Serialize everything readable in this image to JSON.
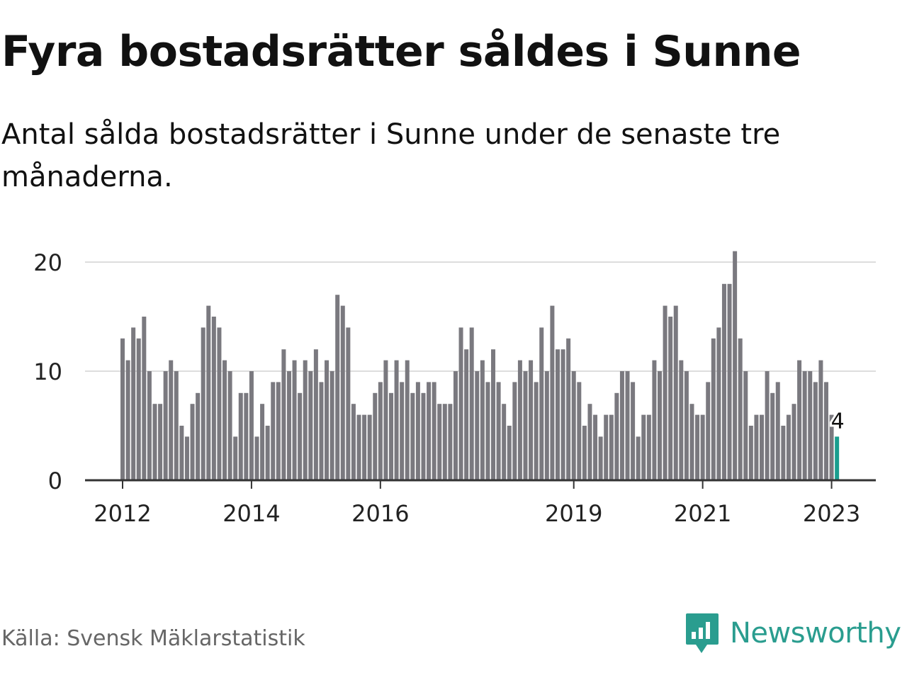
{
  "header": {
    "title": "Fyra bostadsrätter såldes i Sunne",
    "subtitle": "Antal sålda bostadsrätter i Sunne under de senaste tre månaderna."
  },
  "footer": {
    "source": "Källa: Svensk Mäklarstatistik",
    "brand": "Newsworthy"
  },
  "colors": {
    "bar": "#7a797f",
    "highlight": "#1a9e8f",
    "grid": "#dddddd",
    "axis": "#333333",
    "brand": "#2a9d8f"
  },
  "chart_data": {
    "type": "bar",
    "title": "Fyra bostadsrätter såldes i Sunne",
    "xlabel": "",
    "ylabel": "",
    "ylim": [
      0,
      22
    ],
    "yticks": [
      "0",
      "10",
      "20"
    ],
    "grid": true,
    "x_ticks": [
      "2012",
      "2014",
      "2016",
      "2019",
      "2021",
      "2023"
    ],
    "start": "2012-01",
    "frequency": "monthly",
    "values": [
      13,
      11,
      14,
      13,
      15,
      10,
      7,
      7,
      10,
      11,
      10,
      5,
      4,
      7,
      8,
      14,
      16,
      15,
      14,
      11,
      10,
      4,
      8,
      8,
      10,
      4,
      7,
      5,
      9,
      9,
      12,
      10,
      11,
      8,
      11,
      10,
      12,
      9,
      11,
      10,
      17,
      16,
      14,
      7,
      6,
      6,
      6,
      8,
      9,
      11,
      8,
      11,
      9,
      11,
      8,
      9,
      8,
      9,
      9,
      7,
      7,
      7,
      10,
      14,
      12,
      14,
      10,
      11,
      9,
      12,
      9,
      7,
      5,
      9,
      11,
      10,
      11,
      9,
      14,
      10,
      16,
      12,
      12,
      13,
      10,
      9,
      5,
      7,
      6,
      4,
      6,
      6,
      8,
      10,
      10,
      9,
      4,
      6,
      6,
      11,
      10,
      16,
      15,
      16,
      11,
      10,
      7,
      6,
      6,
      9,
      13,
      14,
      18,
      18,
      21,
      13,
      10,
      5,
      6,
      6,
      10,
      8,
      9,
      5,
      6,
      7,
      11,
      10,
      10,
      9,
      11,
      9,
      6,
      4
    ],
    "highlight_last": true,
    "annotation": "4"
  }
}
